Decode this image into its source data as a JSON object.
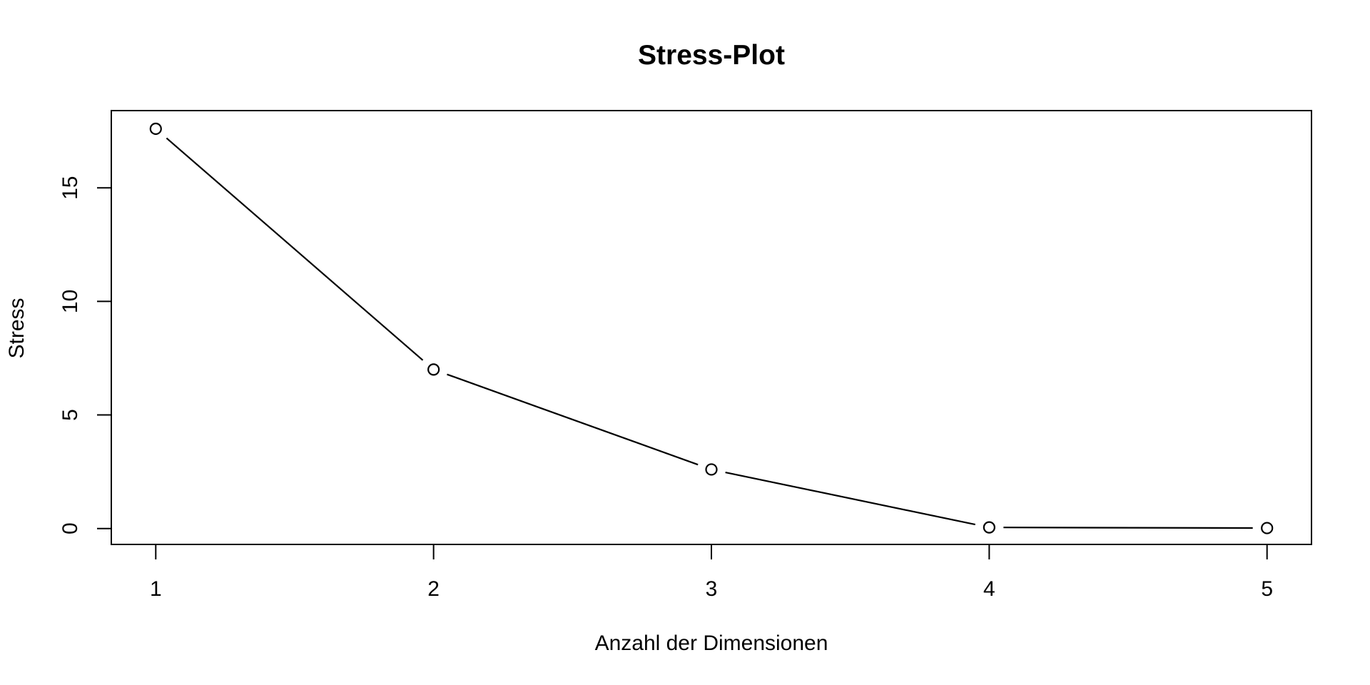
{
  "chart_data": {
    "type": "line",
    "title": "Stress-Plot",
    "xlabel": "Anzahl der Dimensionen",
    "ylabel": "Stress",
    "x": [
      1,
      2,
      3,
      4,
      5
    ],
    "y": [
      17.6,
      7.0,
      2.6,
      0.05,
      0.02
    ],
    "series": [
      {
        "name": "Stress",
        "values": [
          17.6,
          7.0,
          2.6,
          0.05,
          0.02
        ]
      }
    ],
    "xticks": [
      1,
      2,
      3,
      4,
      5
    ],
    "yticks": [
      0,
      5,
      10,
      15
    ],
    "xlim": [
      0.84,
      5.16
    ],
    "ylim": [
      -0.7,
      18.4
    ],
    "grid": false,
    "legend": "none",
    "marker": "open-circle",
    "line_style": "points-and-lines-with-gaps",
    "colors": {
      "line": "#000000",
      "marker_fill": "#ffffff",
      "text": "#000000",
      "background": "#ffffff"
    }
  }
}
